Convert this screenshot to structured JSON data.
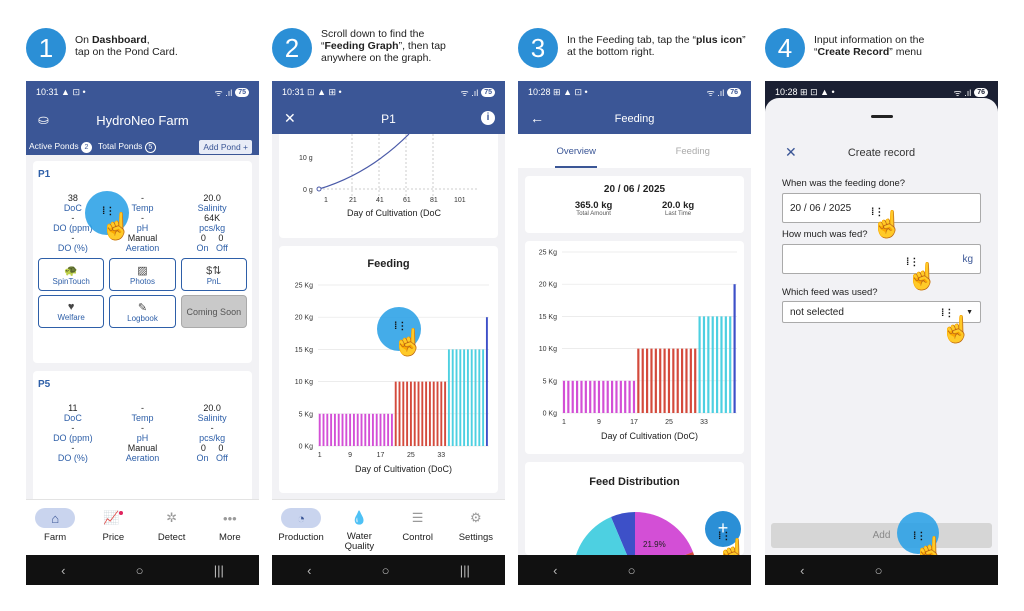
{
  "steps": [
    {
      "num": "1",
      "line1_pre": "On ",
      "line1_bold": "Dashboard",
      "line1_post": ",",
      "line2": "tap on the Pond Card."
    },
    {
      "num": "2",
      "line1": "Scroll down to find the",
      "line2_pre": "“",
      "line2_bold": "Feeding Graph",
      "line2_post": "”, then tap",
      "line3": "anywhere on the graph."
    },
    {
      "num": "3",
      "line1_pre": "In the Feeding tab, tap the “",
      "line1_bold": "plus icon",
      "line1_post": "”",
      "line2": "at the bottom right."
    },
    {
      "num": "4",
      "line1": "Input information on the",
      "line2_pre": "“",
      "line2_bold": "Create Record",
      "line2_post": "” menu"
    }
  ],
  "phone1": {
    "time": "10:31",
    "battery": "75",
    "app_title": "HydroNeo Farm",
    "active_ponds_label": "Active Ponds",
    "active_ponds_count": "2",
    "total_ponds_label": "Total Ponds",
    "total_ponds_count": "5",
    "add_pond": "Add Pond +",
    "ponds": [
      {
        "name": "P1",
        "cells": [
          [
            "38",
            "-",
            "20.0"
          ],
          [
            "DoC",
            "Temp",
            "Salinity"
          ],
          [
            "-",
            "-",
            "64K"
          ],
          [
            "DO (ppm)",
            "pH",
            "pcs/kg"
          ],
          [
            "-",
            "Manual",
            "0     0"
          ],
          [
            "DO (%)",
            "Aeration",
            "On   Off"
          ]
        ],
        "buttons": [
          {
            "label": "SpinTouch",
            "icon": "turtle-icon"
          },
          {
            "label": "Photos",
            "icon": "image-icon"
          },
          {
            "label": "PnL",
            "icon": "money-icon"
          },
          {
            "label": "Welfare",
            "icon": "welfare-icon"
          },
          {
            "label": "Logbook",
            "icon": "logbook-icon"
          },
          {
            "label": "Coming Soon",
            "icon": ""
          }
        ]
      },
      {
        "name": "P5",
        "cells": [
          [
            "11",
            "-",
            "20.0"
          ],
          [
            "DoC",
            "Temp",
            "Salinity"
          ],
          [
            "-",
            "-",
            "-"
          ],
          [
            "DO (ppm)",
            "pH",
            "pcs/kg"
          ],
          [
            "-",
            "Manual",
            "0     0"
          ],
          [
            "DO (%)",
            "Aeration",
            "On   Off"
          ]
        ]
      }
    ],
    "tabs": [
      {
        "label": "Farm",
        "icon": "home-icon"
      },
      {
        "label": "Price",
        "icon": "price-chart-icon"
      },
      {
        "label": "Detect",
        "icon": "detect-icon"
      },
      {
        "label": "More",
        "icon": "more-icon"
      }
    ]
  },
  "phone2": {
    "time": "10:31",
    "battery": "75",
    "title": "P1",
    "growth_ticks_y": [
      "10 g",
      "0 g"
    ],
    "growth_ticks_x": [
      "1",
      "21",
      "41",
      "61",
      "81",
      "101"
    ],
    "growth_xlabel": "Day of Cultivation (DoC",
    "feeding_title": "Feeding",
    "xlabel": "Day of Cultivation (DoC)",
    "tabs": [
      {
        "label": "Production",
        "icon": "production-icon"
      },
      {
        "label": "Water Quality",
        "icon": "water-drop-icon"
      },
      {
        "label": "Control",
        "icon": "sliders-icon"
      },
      {
        "label": "Settings",
        "icon": "gear-icon"
      }
    ]
  },
  "phone3": {
    "time": "10:28",
    "battery": "76",
    "title": "Feeding",
    "tab_overview": "Overview",
    "tab_feeding": "Feeding",
    "date": "20 / 06 / 2025",
    "total_amount": "365.0 kg",
    "total_amount_label": "Total Amount",
    "last_time": "20.0 kg",
    "last_time_label": "Last Time",
    "xlabel": "Day of Cultivation (DoC)",
    "dist_title": "Feed Distribution",
    "pie_label": "21.9%",
    "fab": "+"
  },
  "phone4": {
    "time": "10:28",
    "battery": "76",
    "title": "Create record",
    "q1": "When was the feeding done?",
    "q1_value": "20 / 06 / 2025",
    "q2": "How much was fed?",
    "q2_unit": "kg",
    "q3": "Which feed was used?",
    "q3_value": "not selected",
    "add_button": "Add"
  },
  "chart_data": [
    {
      "type": "bar",
      "title": "Feeding",
      "xlabel": "Day of Cultivation (DoC)",
      "ylabel": "",
      "ylim": [
        0,
        25
      ],
      "y_ticks": [
        "0 Kg",
        "5 Kg",
        "10 Kg",
        "15 Kg",
        "20 Kg",
        "25 Kg"
      ],
      "x_ticks": [
        "1",
        "9",
        "17",
        "25",
        "33"
      ],
      "series": [
        {
          "values": [
            5,
            5,
            5,
            5,
            5,
            5,
            5,
            5,
            5,
            5,
            5,
            5,
            5,
            5,
            5,
            5,
            5,
            5,
            5,
            5
          ]
        },
        {
          "values": [
            10,
            10,
            10,
            10,
            10,
            10,
            10,
            10,
            10,
            10,
            10,
            10,
            10,
            10
          ]
        },
        {
          "values": [
            15,
            15,
            15,
            15,
            15,
            15,
            15,
            15,
            15,
            15
          ]
        },
        {
          "values": [
            20
          ]
        }
      ]
    },
    {
      "type": "bar",
      "title": "",
      "xlabel": "Day of Cultivation (DoC)",
      "ylabel": "",
      "ylim": [
        0,
        25
      ],
      "y_ticks": [
        "0 Kg",
        "5 Kg",
        "10 Kg",
        "15 Kg",
        "20 Kg",
        "25 Kg"
      ],
      "x_ticks": [
        "1",
        "9",
        "17",
        "25",
        "33"
      ],
      "series": [
        {
          "values": [
            5,
            5,
            5,
            5,
            5,
            5,
            5,
            5,
            5,
            5,
            5,
            5,
            5,
            5,
            5,
            5,
            5
          ]
        },
        {
          "values": [
            10,
            10,
            10,
            10,
            10,
            10,
            10,
            10,
            10,
            10,
            10,
            10,
            10,
            10
          ]
        },
        {
          "values": [
            15,
            15,
            15,
            15,
            15,
            15,
            15,
            15
          ]
        },
        {
          "values": [
            20
          ]
        }
      ]
    },
    {
      "type": "pie",
      "title": "Feed Distribution",
      "visible_labels": [
        "21.9%"
      ]
    }
  ],
  "colors": {
    "primary": "#3b5696",
    "accent": "#2b8fd6",
    "bar_magenta": "#d34fd6",
    "bar_red": "#d44a3c",
    "bar_cyan": "#4dd0e1",
    "bar_blue": "#3d50c8"
  }
}
